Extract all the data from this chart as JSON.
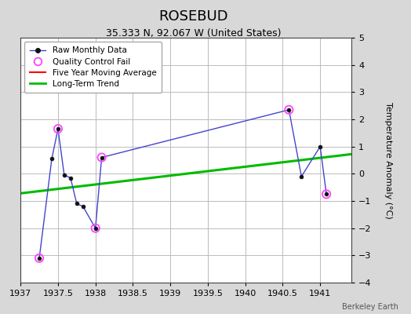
{
  "title": "ROSEBUD",
  "subtitle": "35.333 N, 92.067 W (United States)",
  "ylabel": "Temperature Anomaly (°C)",
  "credit": "Berkeley Earth",
  "ylim": [
    -4,
    5
  ],
  "xlim": [
    1937.0,
    1941.417
  ],
  "xticks": [
    1937,
    1937.5,
    1938,
    1938.5,
    1939,
    1939.5,
    1940,
    1940.5,
    1941
  ],
  "yticks": [
    -4,
    -3,
    -2,
    -1,
    0,
    1,
    2,
    3,
    4,
    5
  ],
  "raw_x": [
    1937.25,
    1937.417,
    1937.5,
    1937.583,
    1937.667,
    1937.75,
    1937.833,
    1938.0,
    1938.083,
    1940.583,
    1940.75,
    1941.0,
    1941.083
  ],
  "raw_y": [
    -3.1,
    0.55,
    1.65,
    -0.05,
    -0.15,
    -1.1,
    -1.2,
    -2.0,
    0.6,
    2.35,
    -0.1,
    1.0,
    -0.75
  ],
  "qc_fail_x": [
    1937.25,
    1937.5,
    1938.0,
    1938.083,
    1940.583,
    1941.083
  ],
  "qc_fail_y": [
    -3.1,
    1.65,
    -2.0,
    0.6,
    2.35,
    -0.75
  ],
  "trend_x": [
    1937.0,
    1941.417
  ],
  "trend_y": [
    -0.72,
    0.72
  ],
  "raw_color": "#4444cc",
  "qc_color": "#ff44ff",
  "ma_color": "#ff0000",
  "trend_color": "#00bb00",
  "bg_color": "#d8d8d8",
  "plot_bg": "#ffffff",
  "grid_color": "#bbbbbb",
  "title_fontsize": 13,
  "subtitle_fontsize": 9,
  "label_fontsize": 8,
  "tick_fontsize": 8
}
